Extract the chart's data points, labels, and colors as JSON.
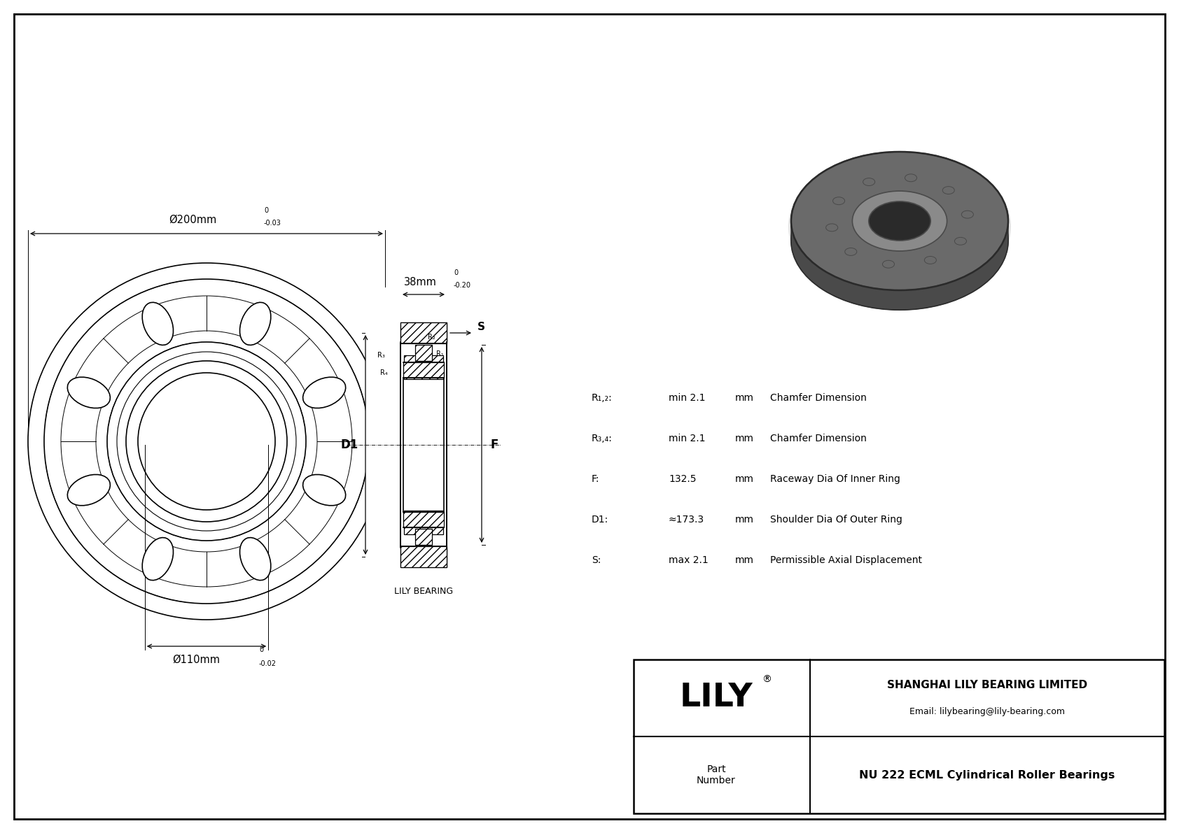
{
  "bg_color": "#ffffff",
  "line_color": "#000000",
  "outer_diameter_label": "Ø200mm",
  "outer_tol_top": "0",
  "outer_tol_bot": "-0.03",
  "inner_diameter_label": "Ø110mm",
  "inner_tol_top": "0",
  "inner_tol_bot": "-0.02",
  "width_label": "38mm",
  "width_tol_top": "0",
  "width_tol_bot": "-0.20",
  "specs": [
    [
      "R₁,₂:",
      "min 2.1",
      "mm",
      "Chamfer Dimension"
    ],
    [
      "R₃,₄:",
      "min 2.1",
      "mm",
      "Chamfer Dimension"
    ],
    [
      "F:",
      "132.5",
      "mm",
      "Raceway Dia Of Inner Ring"
    ],
    [
      "D1:",
      "≈173.3",
      "mm",
      "Shoulder Dia Of Outer Ring"
    ],
    [
      "S:",
      "max 2.1",
      "mm",
      "Permissible Axial Displacement"
    ]
  ],
  "lily_bearing_label": "LILY BEARING",
  "company": "SHANGHAI LILY BEARING LIMITED",
  "email": "Email: lilybearing@lily-bearing.com",
  "part_label": "Part\nNumber",
  "part_number": "NU 222 ECML Cylindrical Roller Bearings"
}
